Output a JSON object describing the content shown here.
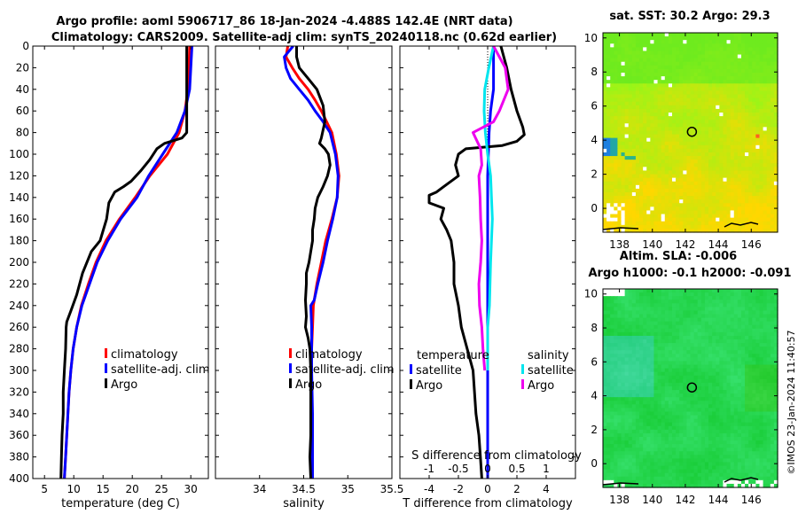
{
  "titles": {
    "line1": "Argo profile: aoml 5906717_86 18-Jan-2024 -4.488S 142.4E (NRT data)",
    "line2": "Climatology: CARS2009. Satellite-adj clim: synTS_20240118.nc (0.62d earlier)",
    "sst": "sat. SST: 30.2 Argo: 29.3",
    "sla1": "Altim. SLA: -0.006",
    "sla2": "Argo h1000: -0.1 h2000: -0.091",
    "side": "©IMOS 23-Jan-2024 11:40:57"
  },
  "colors": {
    "clim": "#ff0000",
    "sat": "#0000ff",
    "argo": "#000000",
    "sat_s": "#00e5ee",
    "argo_s": "#ee00ee"
  },
  "chart_data": [
    {
      "type": "line",
      "name": "temperature",
      "xlabel": "temperature (deg C)",
      "ylabel": "",
      "xlim": [
        3,
        33
      ],
      "ylim": [
        400,
        0
      ],
      "xticks": [
        5,
        10,
        15,
        20,
        25,
        30
      ],
      "yticks": [
        0,
        20,
        40,
        60,
        80,
        100,
        120,
        140,
        160,
        180,
        200,
        220,
        240,
        260,
        280,
        300,
        320,
        340,
        360,
        380,
        400
      ],
      "legend": [
        "climatology",
        "satellite-adj. clim",
        "Argo"
      ],
      "series": [
        {
          "name": "climatology",
          "color": "clim",
          "points": [
            [
              29.8,
              0
            ],
            [
              29.7,
              20
            ],
            [
              29.5,
              40
            ],
            [
              29.0,
              60
            ],
            [
              28.0,
              80
            ],
            [
              26.0,
              100
            ],
            [
              23.0,
              120
            ],
            [
              20.5,
              140
            ],
            [
              17.8,
              160
            ],
            [
              15.5,
              180
            ],
            [
              13.8,
              200
            ],
            [
              12.5,
              220
            ],
            [
              11.3,
              240
            ],
            [
              10.5,
              260
            ],
            [
              9.9,
              280
            ],
            [
              9.5,
              300
            ],
            [
              9.2,
              320
            ],
            [
              9.0,
              340
            ],
            [
              8.8,
              360
            ],
            [
              8.6,
              380
            ],
            [
              8.4,
              400
            ]
          ]
        },
        {
          "name": "satellite-adj. clim",
          "color": "sat",
          "points": [
            [
              30.2,
              0
            ],
            [
              30.0,
              20
            ],
            [
              29.8,
              40
            ],
            [
              29.0,
              60
            ],
            [
              27.6,
              80
            ],
            [
              25.2,
              100
            ],
            [
              22.8,
              120
            ],
            [
              20.8,
              140
            ],
            [
              18.0,
              160
            ],
            [
              15.8,
              180
            ],
            [
              14.0,
              200
            ],
            [
              12.7,
              220
            ],
            [
              11.4,
              240
            ],
            [
              10.5,
              260
            ],
            [
              9.9,
              280
            ],
            [
              9.5,
              300
            ],
            [
              9.2,
              320
            ],
            [
              9.0,
              340
            ],
            [
              8.8,
              360
            ],
            [
              8.6,
              380
            ],
            [
              8.4,
              400
            ]
          ]
        },
        {
          "name": "Argo",
          "color": "argo",
          "points": [
            [
              29.3,
              0
            ],
            [
              29.3,
              20
            ],
            [
              29.3,
              40
            ],
            [
              29.3,
              60
            ],
            [
              29.3,
              80
            ],
            [
              28.5,
              85
            ],
            [
              25.5,
              90
            ],
            [
              24.2,
              95
            ],
            [
              23.0,
              105
            ],
            [
              21.5,
              115
            ],
            [
              19.8,
              125
            ],
            [
              18.5,
              130
            ],
            [
              17.0,
              135
            ],
            [
              16.5,
              140
            ],
            [
              16.0,
              145
            ],
            [
              15.6,
              160
            ],
            [
              14.5,
              180
            ],
            [
              13.0,
              190
            ],
            [
              11.5,
              210
            ],
            [
              10.5,
              230
            ],
            [
              9.5,
              245
            ],
            [
              8.8,
              255
            ],
            [
              8.7,
              260
            ],
            [
              8.6,
              280
            ],
            [
              8.4,
              300
            ],
            [
              8.2,
              320
            ],
            [
              8.2,
              340
            ],
            [
              8.0,
              360
            ],
            [
              7.9,
              380
            ],
            [
              7.8,
              400
            ]
          ]
        }
      ]
    },
    {
      "type": "line",
      "name": "salinity",
      "xlabel": "salinity",
      "ylabel": "",
      "xlim": [
        33.5,
        35.5
      ],
      "ylim": [
        400,
        0
      ],
      "xticks": [
        34,
        34.5,
        35,
        35.5
      ],
      "legend": [
        "climatology",
        "satellite-adj. clim",
        "Argo"
      ],
      "series": [
        {
          "name": "climatology",
          "color": "clim",
          "points": [
            [
              34.32,
              0
            ],
            [
              34.3,
              10
            ],
            [
              34.37,
              20
            ],
            [
              34.45,
              30
            ],
            [
              34.55,
              40
            ],
            [
              34.63,
              50
            ],
            [
              34.7,
              60
            ],
            [
              34.76,
              70
            ],
            [
              34.82,
              80
            ],
            [
              34.87,
              100
            ],
            [
              34.9,
              120
            ],
            [
              34.88,
              140
            ],
            [
              34.82,
              160
            ],
            [
              34.75,
              180
            ],
            [
              34.7,
              200
            ],
            [
              34.65,
              220
            ],
            [
              34.61,
              240
            ],
            [
              34.6,
              260
            ],
            [
              34.59,
              280
            ],
            [
              34.59,
              300
            ],
            [
              34.59,
              340
            ],
            [
              34.6,
              360
            ],
            [
              34.6,
              400
            ]
          ]
        },
        {
          "name": "satellite-adj. clim",
          "color": "sat",
          "points": [
            [
              34.38,
              0
            ],
            [
              34.28,
              10
            ],
            [
              34.3,
              20
            ],
            [
              34.35,
              30
            ],
            [
              34.45,
              40
            ],
            [
              34.55,
              50
            ],
            [
              34.63,
              60
            ],
            [
              34.72,
              70
            ],
            [
              34.8,
              80
            ],
            [
              34.86,
              100
            ],
            [
              34.89,
              120
            ],
            [
              34.88,
              140
            ],
            [
              34.83,
              160
            ],
            [
              34.77,
              180
            ],
            [
              34.72,
              200
            ],
            [
              34.66,
              220
            ],
            [
              34.62,
              235
            ],
            [
              34.58,
              240
            ],
            [
              34.59,
              260
            ],
            [
              34.59,
              300
            ],
            [
              34.6,
              340
            ],
            [
              34.6,
              360
            ],
            [
              34.6,
              400
            ]
          ]
        },
        {
          "name": "Argo",
          "color": "argo",
          "points": [
            [
              34.42,
              0
            ],
            [
              34.42,
              10
            ],
            [
              34.45,
              20
            ],
            [
              34.55,
              30
            ],
            [
              34.65,
              40
            ],
            [
              34.72,
              55
            ],
            [
              34.74,
              70
            ],
            [
              34.7,
              85
            ],
            [
              34.68,
              90
            ],
            [
              34.74,
              95
            ],
            [
              34.78,
              100
            ],
            [
              34.8,
              110
            ],
            [
              34.77,
              120
            ],
            [
              34.72,
              130
            ],
            [
              34.66,
              140
            ],
            [
              34.63,
              150
            ],
            [
              34.62,
              160
            ],
            [
              34.6,
              170
            ],
            [
              34.6,
              180
            ],
            [
              34.58,
              190
            ],
            [
              34.56,
              200
            ],
            [
              34.53,
              210
            ],
            [
              34.53,
              220
            ],
            [
              34.52,
              235
            ],
            [
              34.53,
              250
            ],
            [
              34.52,
              260
            ],
            [
              34.55,
              270
            ],
            [
              34.57,
              280
            ],
            [
              34.58,
              300
            ],
            [
              34.58,
              340
            ],
            [
              34.58,
              360
            ],
            [
              34.57,
              380
            ],
            [
              34.58,
              400
            ]
          ]
        }
      ]
    },
    {
      "type": "line",
      "name": "difference",
      "xlabel": "T difference from climatology",
      "ylabel": "",
      "xlim": [
        -6,
        6
      ],
      "ylim": [
        400,
        0
      ],
      "xticks": [
        -4,
        -2,
        0,
        2,
        4
      ],
      "s_axis_label": "S difference from climatology",
      "s_ticks": [
        -1,
        -0.5,
        0,
        0.5,
        1
      ],
      "legend_headers": [
        "temperature",
        "salinity"
      ],
      "legend": [
        "satellite",
        "Argo",
        "satellite",
        "Argo"
      ],
      "series": [
        {
          "name": "satellite",
          "group": "temperature",
          "color": "sat",
          "points": [
            [
              0.4,
              0
            ],
            [
              0.4,
              20
            ],
            [
              0.4,
              40
            ],
            [
              0.2,
              60
            ],
            [
              0.1,
              80
            ],
            [
              0.05,
              100
            ],
            [
              0,
              120
            ],
            [
              0,
              400
            ]
          ]
        },
        {
          "name": "Argo",
          "group": "temperature",
          "color": "argo",
          "points": [
            [
              0.9,
              0
            ],
            [
              1.3,
              20
            ],
            [
              1.6,
              40
            ],
            [
              2.0,
              60
            ],
            [
              2.4,
              75
            ],
            [
              2.5,
              82
            ],
            [
              2.0,
              88
            ],
            [
              1.0,
              92
            ],
            [
              -1.5,
              95
            ],
            [
              -2.0,
              100
            ],
            [
              -2.2,
              110
            ],
            [
              -2.0,
              120
            ],
            [
              -3.0,
              130
            ],
            [
              -3.5,
              135
            ],
            [
              -4.0,
              138
            ],
            [
              -4.0,
              145
            ],
            [
              -3.0,
              150
            ],
            [
              -3.2,
              160
            ],
            [
              -2.8,
              170
            ],
            [
              -2.5,
              180
            ],
            [
              -2.4,
              190
            ],
            [
              -2.3,
              200
            ],
            [
              -2.3,
              220
            ],
            [
              -2.0,
              240
            ],
            [
              -1.8,
              260
            ],
            [
              -1.0,
              300
            ],
            [
              -0.8,
              340
            ],
            [
              -0.6,
              360
            ],
            [
              -0.5,
              380
            ],
            [
              -0.4,
              400
            ]
          ]
        },
        {
          "name": "satellite",
          "group": "salinity",
          "color": "sat_s",
          "points": [
            [
              0.1,
              0
            ],
            [
              0.02,
              20
            ],
            [
              -0.05,
              40
            ],
            [
              -0.06,
              60
            ],
            [
              -0.04,
              80
            ],
            [
              0.0,
              100
            ],
            [
              0.05,
              120
            ],
            [
              0.08,
              160
            ],
            [
              0.05,
              200
            ],
            [
              0.03,
              240
            ],
            [
              0.0,
              260
            ],
            [
              0.0,
              300
            ]
          ]
        },
        {
          "name": "Argo",
          "group": "salinity",
          "color": "argo_s",
          "points": [
            [
              0.1,
              0
            ],
            [
              0.3,
              20
            ],
            [
              0.35,
              40
            ],
            [
              0.2,
              60
            ],
            [
              0.1,
              70
            ],
            [
              -0.25,
              80
            ],
            [
              -0.12,
              95
            ],
            [
              -0.1,
              110
            ],
            [
              -0.15,
              120
            ],
            [
              -0.13,
              140
            ],
            [
              -0.12,
              160
            ],
            [
              -0.1,
              180
            ],
            [
              -0.12,
              200
            ],
            [
              -0.15,
              220
            ],
            [
              -0.14,
              240
            ],
            [
              -0.1,
              260
            ],
            [
              -0.08,
              280
            ],
            [
              -0.05,
              300
            ]
          ]
        }
      ]
    },
    {
      "type": "heatmap",
      "name": "sst_map",
      "xticks": [
        138,
        140,
        142,
        144,
        146
      ],
      "yticks": [
        0,
        2,
        4,
        6,
        8,
        10
      ],
      "xlim": [
        137,
        147.6
      ],
      "ylim": [
        -1.4,
        10.3
      ],
      "marker": [
        142.4,
        4.49
      ]
    },
    {
      "type": "heatmap",
      "name": "sla_map",
      "xticks": [
        138,
        140,
        142,
        144,
        146
      ],
      "yticks": [
        0,
        2,
        4,
        6,
        8,
        10
      ],
      "xlim": [
        137,
        147.6
      ],
      "ylim": [
        -1.4,
        10.3
      ],
      "marker": [
        142.4,
        4.49
      ]
    }
  ]
}
